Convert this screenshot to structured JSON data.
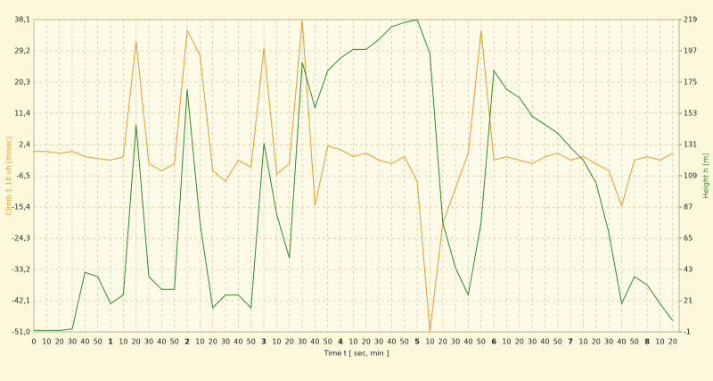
{
  "chart_data": {
    "type": "line",
    "x_label": "Time  t  [ sec, min ]",
    "y_label": "Climb 1.10  vh  [m/sec]",
    "y2_label": "Height  h  [m]",
    "grid": true,
    "xlim": [
      0,
      505
    ],
    "ylim": [
      -51.0,
      38.1
    ],
    "y2lim": [
      -1,
      219
    ],
    "yticks": [
      {
        "value": -51.0,
        "label": "-51,0"
      },
      {
        "value": -42.1,
        "label": "-42,1"
      },
      {
        "value": -33.2,
        "label": "-33,2"
      },
      {
        "value": -24.3,
        "label": "-24,3"
      },
      {
        "value": -15.4,
        "label": "-15,4"
      },
      {
        "value": -6.5,
        "label": "-6,5"
      },
      {
        "value": 2.4,
        "label": "2,4"
      },
      {
        "value": 11.4,
        "label": "11,4"
      },
      {
        "value": 20.3,
        "label": "20,3"
      },
      {
        "value": 29.2,
        "label": "29,2"
      },
      {
        "value": 38.1,
        "label": "38,1"
      }
    ],
    "y2ticks": [
      -1,
      21,
      43,
      65,
      87,
      109,
      131,
      153,
      175,
      197,
      219
    ],
    "xticks": [
      0,
      10,
      20,
      30,
      40,
      50,
      {
        "value": 60,
        "label": "1"
      },
      {
        "value": 70,
        "label": "10"
      },
      {
        "value": 80,
        "label": "20"
      },
      {
        "value": 90,
        "label": "30"
      },
      {
        "value": 100,
        "label": "40"
      },
      {
        "value": 110,
        "label": "50"
      },
      {
        "value": 120,
        "label": "2"
      },
      {
        "value": 130,
        "label": "10"
      },
      {
        "value": 140,
        "label": "20"
      },
      {
        "value": 150,
        "label": "30"
      },
      {
        "value": 160,
        "label": "40"
      },
      {
        "value": 170,
        "label": "50"
      },
      {
        "value": 180,
        "label": "3"
      },
      {
        "value": 190,
        "label": "10"
      },
      {
        "value": 200,
        "label": "20"
      },
      {
        "value": 210,
        "label": "30"
      },
      {
        "value": 220,
        "label": "40"
      },
      {
        "value": 230,
        "label": "50"
      },
      {
        "value": 240,
        "label": "4"
      },
      {
        "value": 250,
        "label": "10"
      },
      {
        "value": 260,
        "label": "20"
      },
      {
        "value": 270,
        "label": "30"
      },
      {
        "value": 280,
        "label": "40"
      },
      {
        "value": 290,
        "label": "50"
      },
      {
        "value": 300,
        "label": "5"
      },
      {
        "value": 310,
        "label": "10"
      },
      {
        "value": 320,
        "label": "20"
      },
      {
        "value": 330,
        "label": "30"
      },
      {
        "value": 340,
        "label": "40"
      },
      {
        "value": 350,
        "label": "50"
      },
      {
        "value": 360,
        "label": "6"
      },
      {
        "value": 370,
        "label": "10"
      },
      {
        "value": 380,
        "label": "20"
      },
      {
        "value": 390,
        "label": "30"
      },
      {
        "value": 400,
        "label": "40"
      },
      {
        "value": 410,
        "label": "50"
      },
      {
        "value": 420,
        "label": "7"
      },
      {
        "value": 430,
        "label": "10"
      },
      {
        "value": 440,
        "label": "20"
      },
      {
        "value": 450,
        "label": "30"
      },
      {
        "value": 460,
        "label": "40"
      },
      {
        "value": 470,
        "label": "50"
      },
      {
        "value": 480,
        "label": "8"
      },
      {
        "value": 490,
        "label": "10"
      },
      {
        "value": 500,
        "label": "20"
      }
    ],
    "x": [
      0,
      10,
      20,
      30,
      40,
      50,
      60,
      70,
      80,
      90,
      100,
      110,
      120,
      130,
      140,
      150,
      160,
      170,
      180,
      190,
      200,
      210,
      220,
      230,
      240,
      250,
      260,
      270,
      280,
      290,
      300,
      310,
      320,
      330,
      340,
      350,
      360,
      370,
      380,
      390,
      400,
      410,
      420,
      430,
      440,
      450,
      460,
      470,
      480,
      490,
      500
    ],
    "series": [
      {
        "name": "Climb",
        "color": "#e89a2c",
        "axis": "y",
        "values": [
          0.5,
          0.5,
          0,
          0.5,
          -1,
          -1.5,
          -2,
          -1,
          32,
          -3,
          -5,
          -3,
          35,
          28,
          -5,
          -8,
          -2,
          -4,
          30,
          -6,
          -3,
          38,
          -15,
          2,
          1,
          -1,
          0,
          -2,
          -3,
          -1,
          -8,
          -51,
          -20,
          -10,
          0,
          35,
          -2,
          -1,
          -2,
          -3,
          -1,
          0,
          -2,
          -1,
          -3,
          -5,
          -15,
          -2,
          -1,
          -2,
          0
        ]
      },
      {
        "name": "Height",
        "color": "#2f8a2f",
        "axis": "y2",
        "values": [
          0,
          0,
          0,
          1,
          41,
          38,
          19,
          25,
          145,
          38,
          29,
          29,
          170,
          76,
          16,
          25,
          25,
          16,
          132,
          82,
          51,
          189,
          157,
          183,
          192,
          198,
          198,
          205,
          214,
          217,
          219,
          195,
          76,
          44,
          25,
          76,
          183,
          170,
          164,
          151,
          145,
          139,
          129,
          120,
          104,
          69,
          19,
          38,
          32,
          19,
          7
        ]
      }
    ]
  }
}
